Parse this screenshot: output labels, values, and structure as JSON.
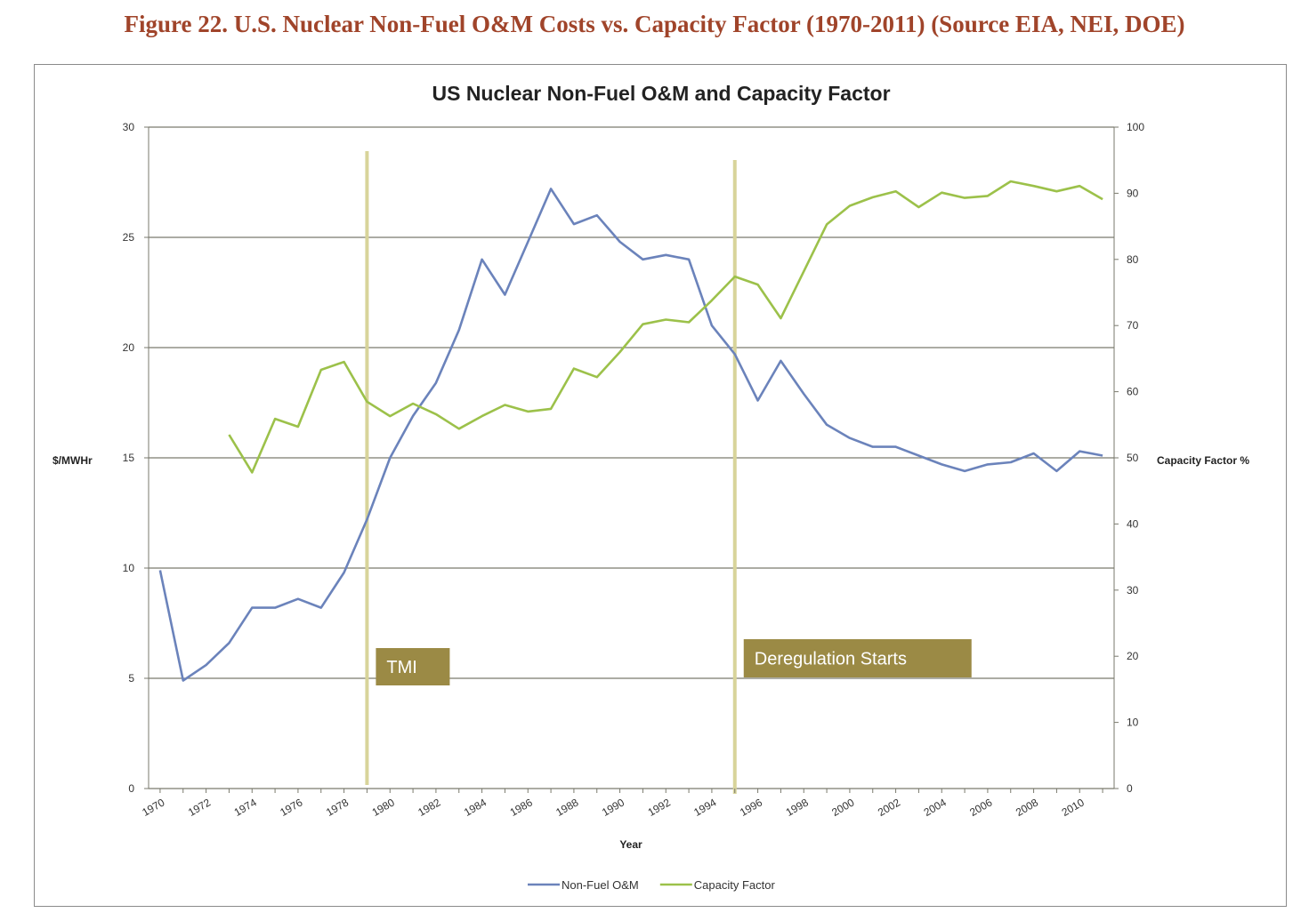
{
  "figure_caption": "Figure 22. U.S. Nuclear Non-Fuel O&M Costs vs. Capacity Factor (1970-2011) (Source EIA, NEI, DOE)",
  "colors": {
    "caption": "#a0442a",
    "om_line": "#6b83bb",
    "cf_line": "#9cc14a",
    "marker_line": "#d8d49a",
    "callout_bg": "#9b8a45",
    "grid": "#7a7a6e"
  },
  "chart_data": {
    "type": "line",
    "title": "US Nuclear Non-Fuel O&M and Capacity Factor",
    "xlabel": "Year",
    "ylabel_left": "$/MWHr",
    "ylabel_right": "Capacity Factor %",
    "x": [
      1970,
      1971,
      1972,
      1973,
      1974,
      1975,
      1976,
      1977,
      1978,
      1979,
      1980,
      1981,
      1982,
      1983,
      1984,
      1985,
      1986,
      1987,
      1988,
      1989,
      1990,
      1991,
      1992,
      1993,
      1994,
      1995,
      1996,
      1997,
      1998,
      1999,
      2000,
      2001,
      2002,
      2003,
      2004,
      2005,
      2006,
      2007,
      2008,
      2009,
      2010,
      2011
    ],
    "x_tick_labels": [
      "1970",
      "1972",
      "1974",
      "1976",
      "1978",
      "1980",
      "1982",
      "1984",
      "1986",
      "1988",
      "1990",
      "1992",
      "1994",
      "1996",
      "1998",
      "2000",
      "2002",
      "2004",
      "2006",
      "2008",
      "2010"
    ],
    "y_left_ticks": [
      "0",
      "5",
      "10",
      "15",
      "20",
      "25",
      "30"
    ],
    "y_right_ticks": [
      "0",
      "10",
      "20",
      "30",
      "40",
      "50",
      "60",
      "70",
      "80",
      "90",
      "100"
    ],
    "ylim_left": [
      0,
      30
    ],
    "ylim_right": [
      0,
      100
    ],
    "grid": "horizontal",
    "legend_position": "bottom",
    "series": [
      {
        "name": "Non-Fuel O&M",
        "axis": "left",
        "values": [
          9.9,
          4.9,
          5.6,
          6.6,
          8.2,
          8.2,
          8.6,
          8.2,
          9.8,
          12.2,
          15.0,
          16.9,
          18.4,
          20.8,
          24.0,
          22.4,
          24.8,
          27.2,
          25.6,
          26.0,
          24.8,
          24.0,
          24.2,
          24.0,
          21.0,
          19.7,
          17.6,
          19.4,
          17.9,
          16.5,
          15.9,
          15.5,
          15.5,
          15.1,
          14.7,
          14.4,
          14.7,
          14.8,
          15.2,
          14.4,
          15.3,
          15.1
        ]
      },
      {
        "name": "Capacity Factor",
        "axis": "right",
        "values": [
          null,
          null,
          null,
          53.5,
          47.8,
          55.9,
          54.7,
          63.3,
          64.5,
          58.5,
          56.3,
          58.2,
          56.6,
          54.4,
          56.3,
          58.0,
          57.0,
          57.4,
          63.5,
          62.2,
          66.0,
          70.2,
          70.9,
          70.5,
          73.8,
          77.4,
          76.2,
          71.1,
          78.2,
          85.3,
          88.1,
          89.4,
          90.3,
          87.9,
          90.1,
          89.3,
          89.6,
          91.8,
          91.1,
          90.3,
          91.1,
          89.1
        ]
      }
    ],
    "annotations": [
      {
        "label": "TMI",
        "x": 1979
      },
      {
        "label": "Deregulation Starts",
        "x": 1995
      }
    ]
  }
}
